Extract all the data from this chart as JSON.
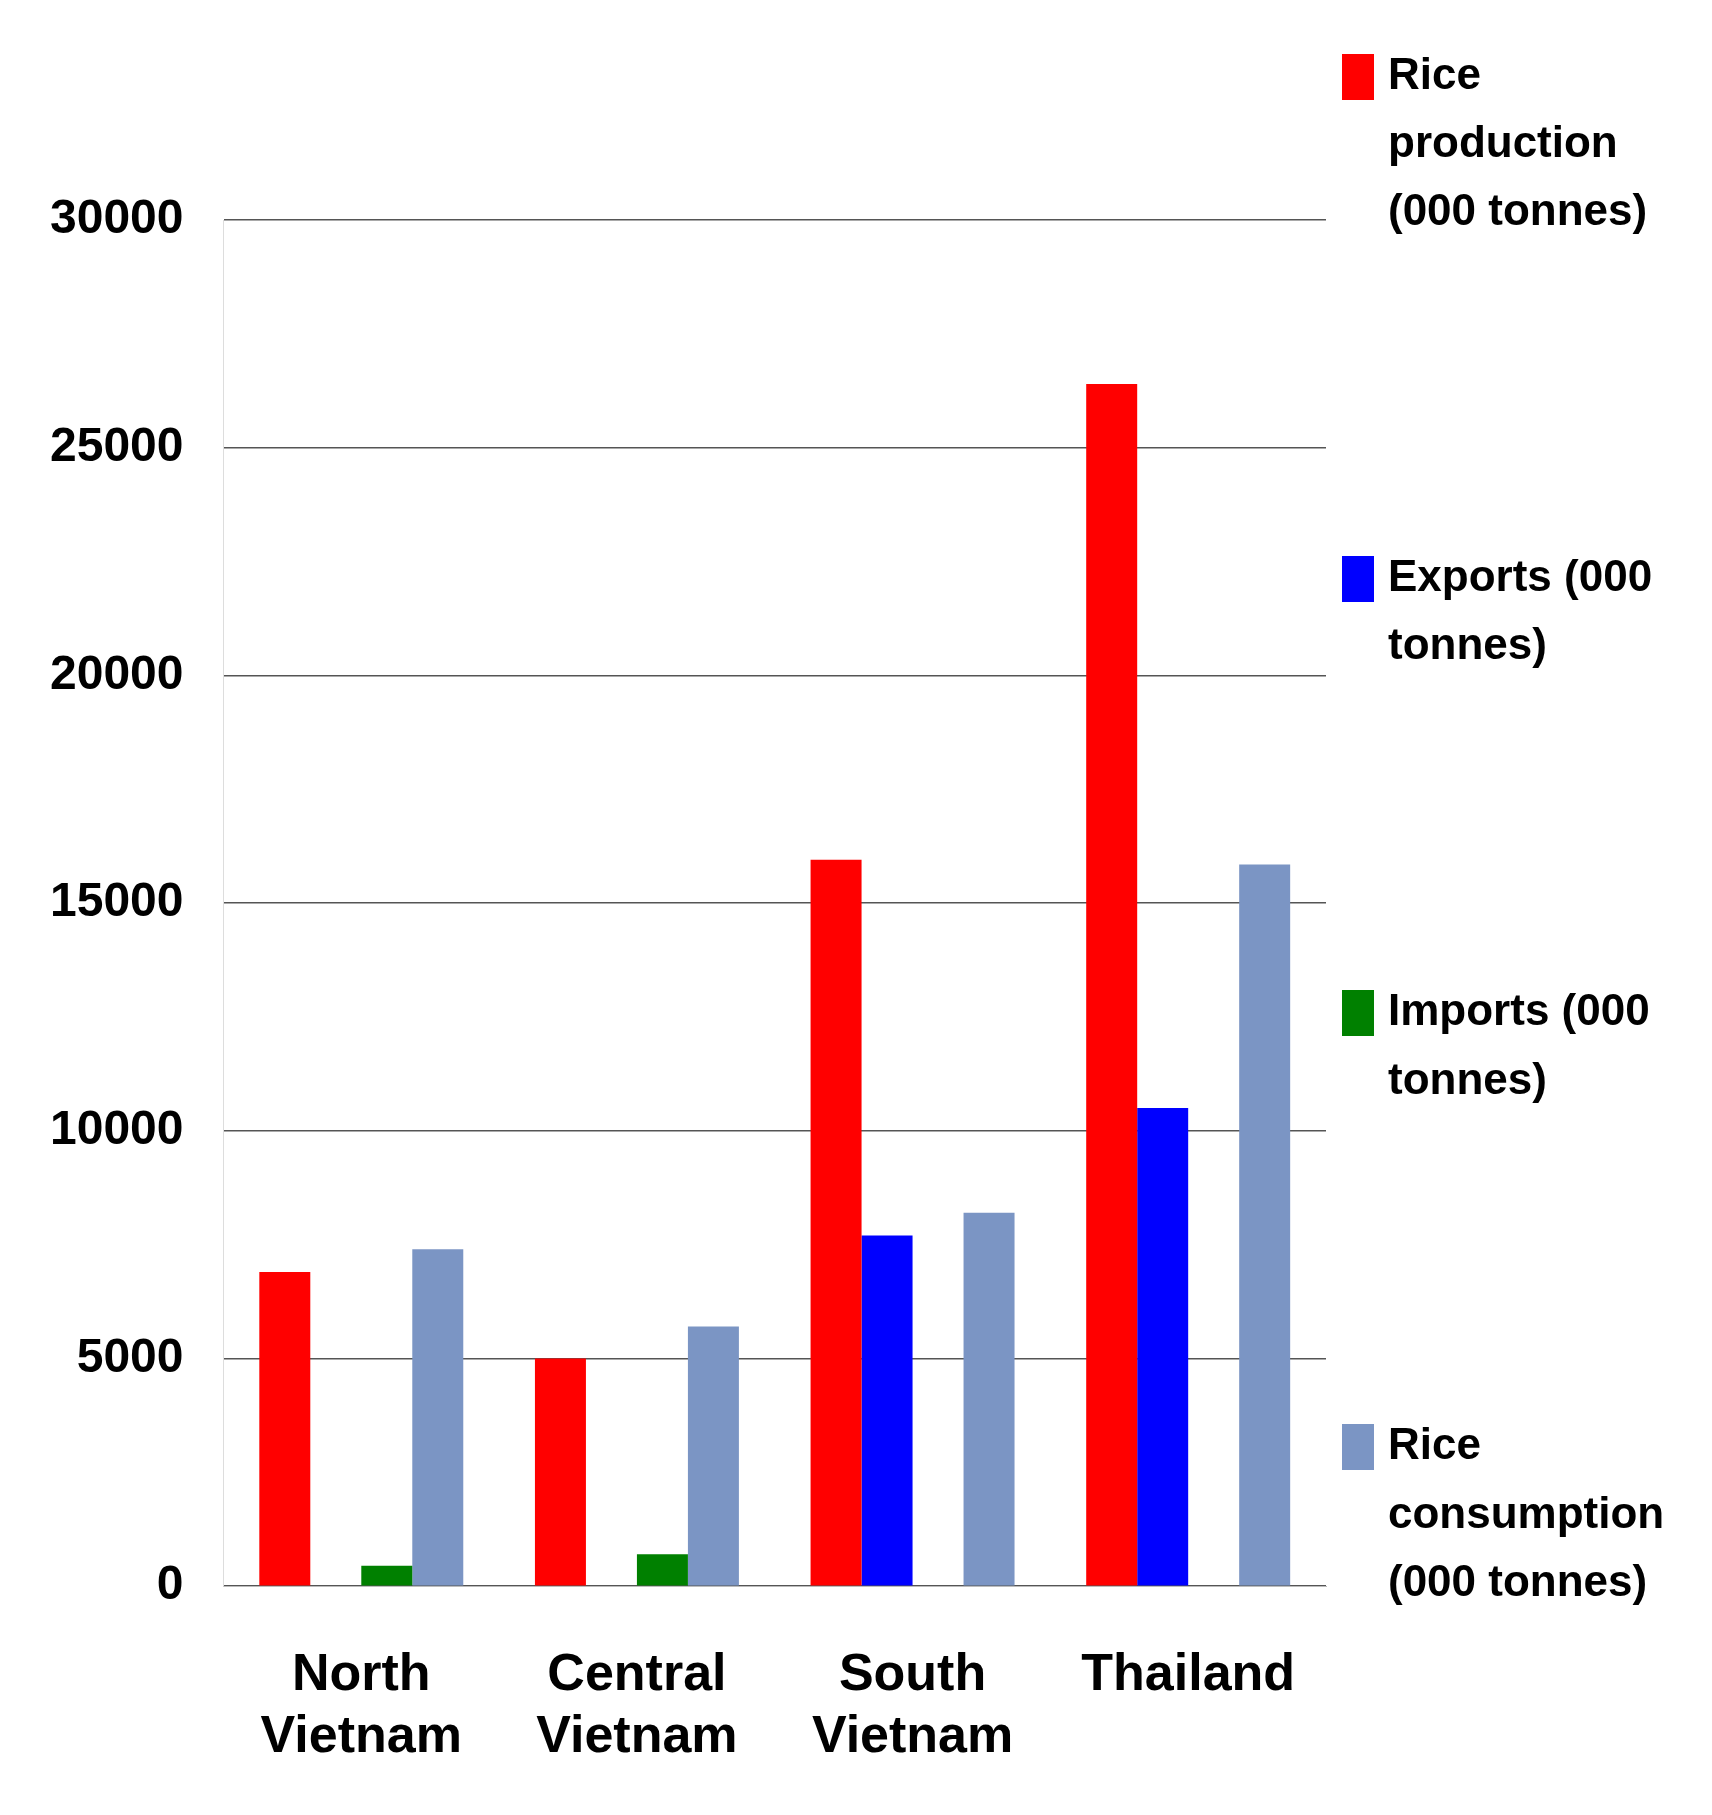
{
  "chart_data": {
    "type": "bar",
    "categories": [
      "North Vietnam",
      "Central Vietnam",
      "South Vietnam",
      "Thailand"
    ],
    "series": [
      {
        "name": "Rice production (000 tonnes)",
        "color": "#ff0000",
        "values": [
          6900,
          5000,
          15950,
          26400
        ]
      },
      {
        "name": "Exports (000 tonnes)",
        "color": "#0000ff",
        "values": [
          null,
          null,
          7700,
          10500
        ]
      },
      {
        "name": "Imports (000 tonnes)",
        "color": "#008000",
        "values": [
          450,
          700,
          null,
          null
        ]
      },
      {
        "name": "Rice consumption (000 tonnes)",
        "color": "#7b95c4",
        "values": [
          7400,
          5700,
          8200,
          15850
        ]
      }
    ],
    "ylim": [
      0,
      30000
    ],
    "yticks": [
      0,
      5000,
      10000,
      15000,
      20000,
      25000,
      30000
    ],
    "grid": "y",
    "legend": "right"
  }
}
